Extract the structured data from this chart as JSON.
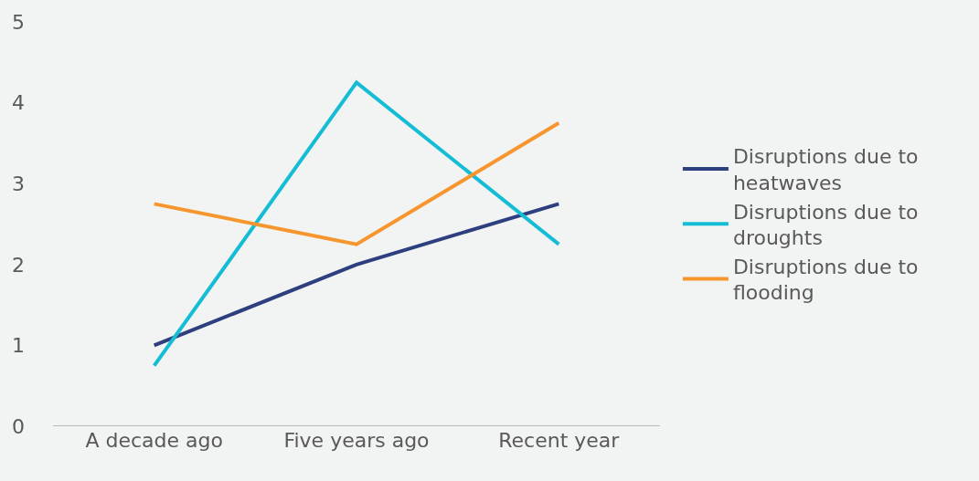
{
  "chart_data": {
    "type": "line",
    "categories": [
      "A decade ago",
      "Five years ago",
      "Recent year"
    ],
    "series": [
      {
        "name": "Disruptions due to heatwaves",
        "color": "#2e3f80",
        "values": [
          1,
          2,
          2.75
        ]
      },
      {
        "name": "Disruptions due to droughts",
        "color": "#14bcd6",
        "values": [
          0.75,
          4.25,
          2.25
        ]
      },
      {
        "name": "Disruptions due to flooding",
        "color": "#f7962f",
        "values": [
          2.75,
          2.25,
          3.75
        ]
      }
    ],
    "ylim": [
      0,
      5
    ],
    "yticks": [
      0,
      1,
      2,
      3,
      4,
      5
    ],
    "grid": false,
    "legend": "right",
    "marker": "none",
    "line_style": "solid"
  }
}
